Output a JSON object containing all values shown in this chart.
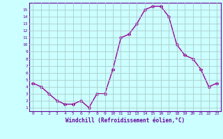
{
  "x": [
    0,
    1,
    2,
    3,
    4,
    5,
    6,
    7,
    8,
    9,
    10,
    11,
    12,
    13,
    14,
    15,
    16,
    17,
    18,
    19,
    20,
    21,
    22,
    23
  ],
  "y": [
    4.5,
    4.0,
    3.0,
    2.0,
    1.5,
    1.5,
    2.0,
    1.0,
    3.0,
    3.0,
    6.5,
    11.0,
    11.5,
    13.0,
    15.0,
    15.5,
    15.5,
    14.0,
    10.0,
    8.5,
    8.0,
    6.5,
    4.0,
    4.5
  ],
  "line_color": "#990099",
  "marker": "D",
  "marker_size": 2,
  "bg_color": "#ccffff",
  "grid_color": "#aacccc",
  "xlabel": "Windchill (Refroidissement éolien,°C)",
  "xlabel_color": "#660099",
  "tick_color": "#660099",
  "axis_color": "#660099",
  "xlim": [
    -0.5,
    23.5
  ],
  "ylim": [
    0.5,
    16
  ],
  "xticks": [
    0,
    1,
    2,
    3,
    4,
    5,
    6,
    7,
    8,
    9,
    10,
    11,
    12,
    13,
    14,
    15,
    16,
    17,
    18,
    19,
    20,
    21,
    22,
    23
  ],
  "yticks": [
    1,
    2,
    3,
    4,
    5,
    6,
    7,
    8,
    9,
    10,
    11,
    12,
    13,
    14,
    15
  ]
}
